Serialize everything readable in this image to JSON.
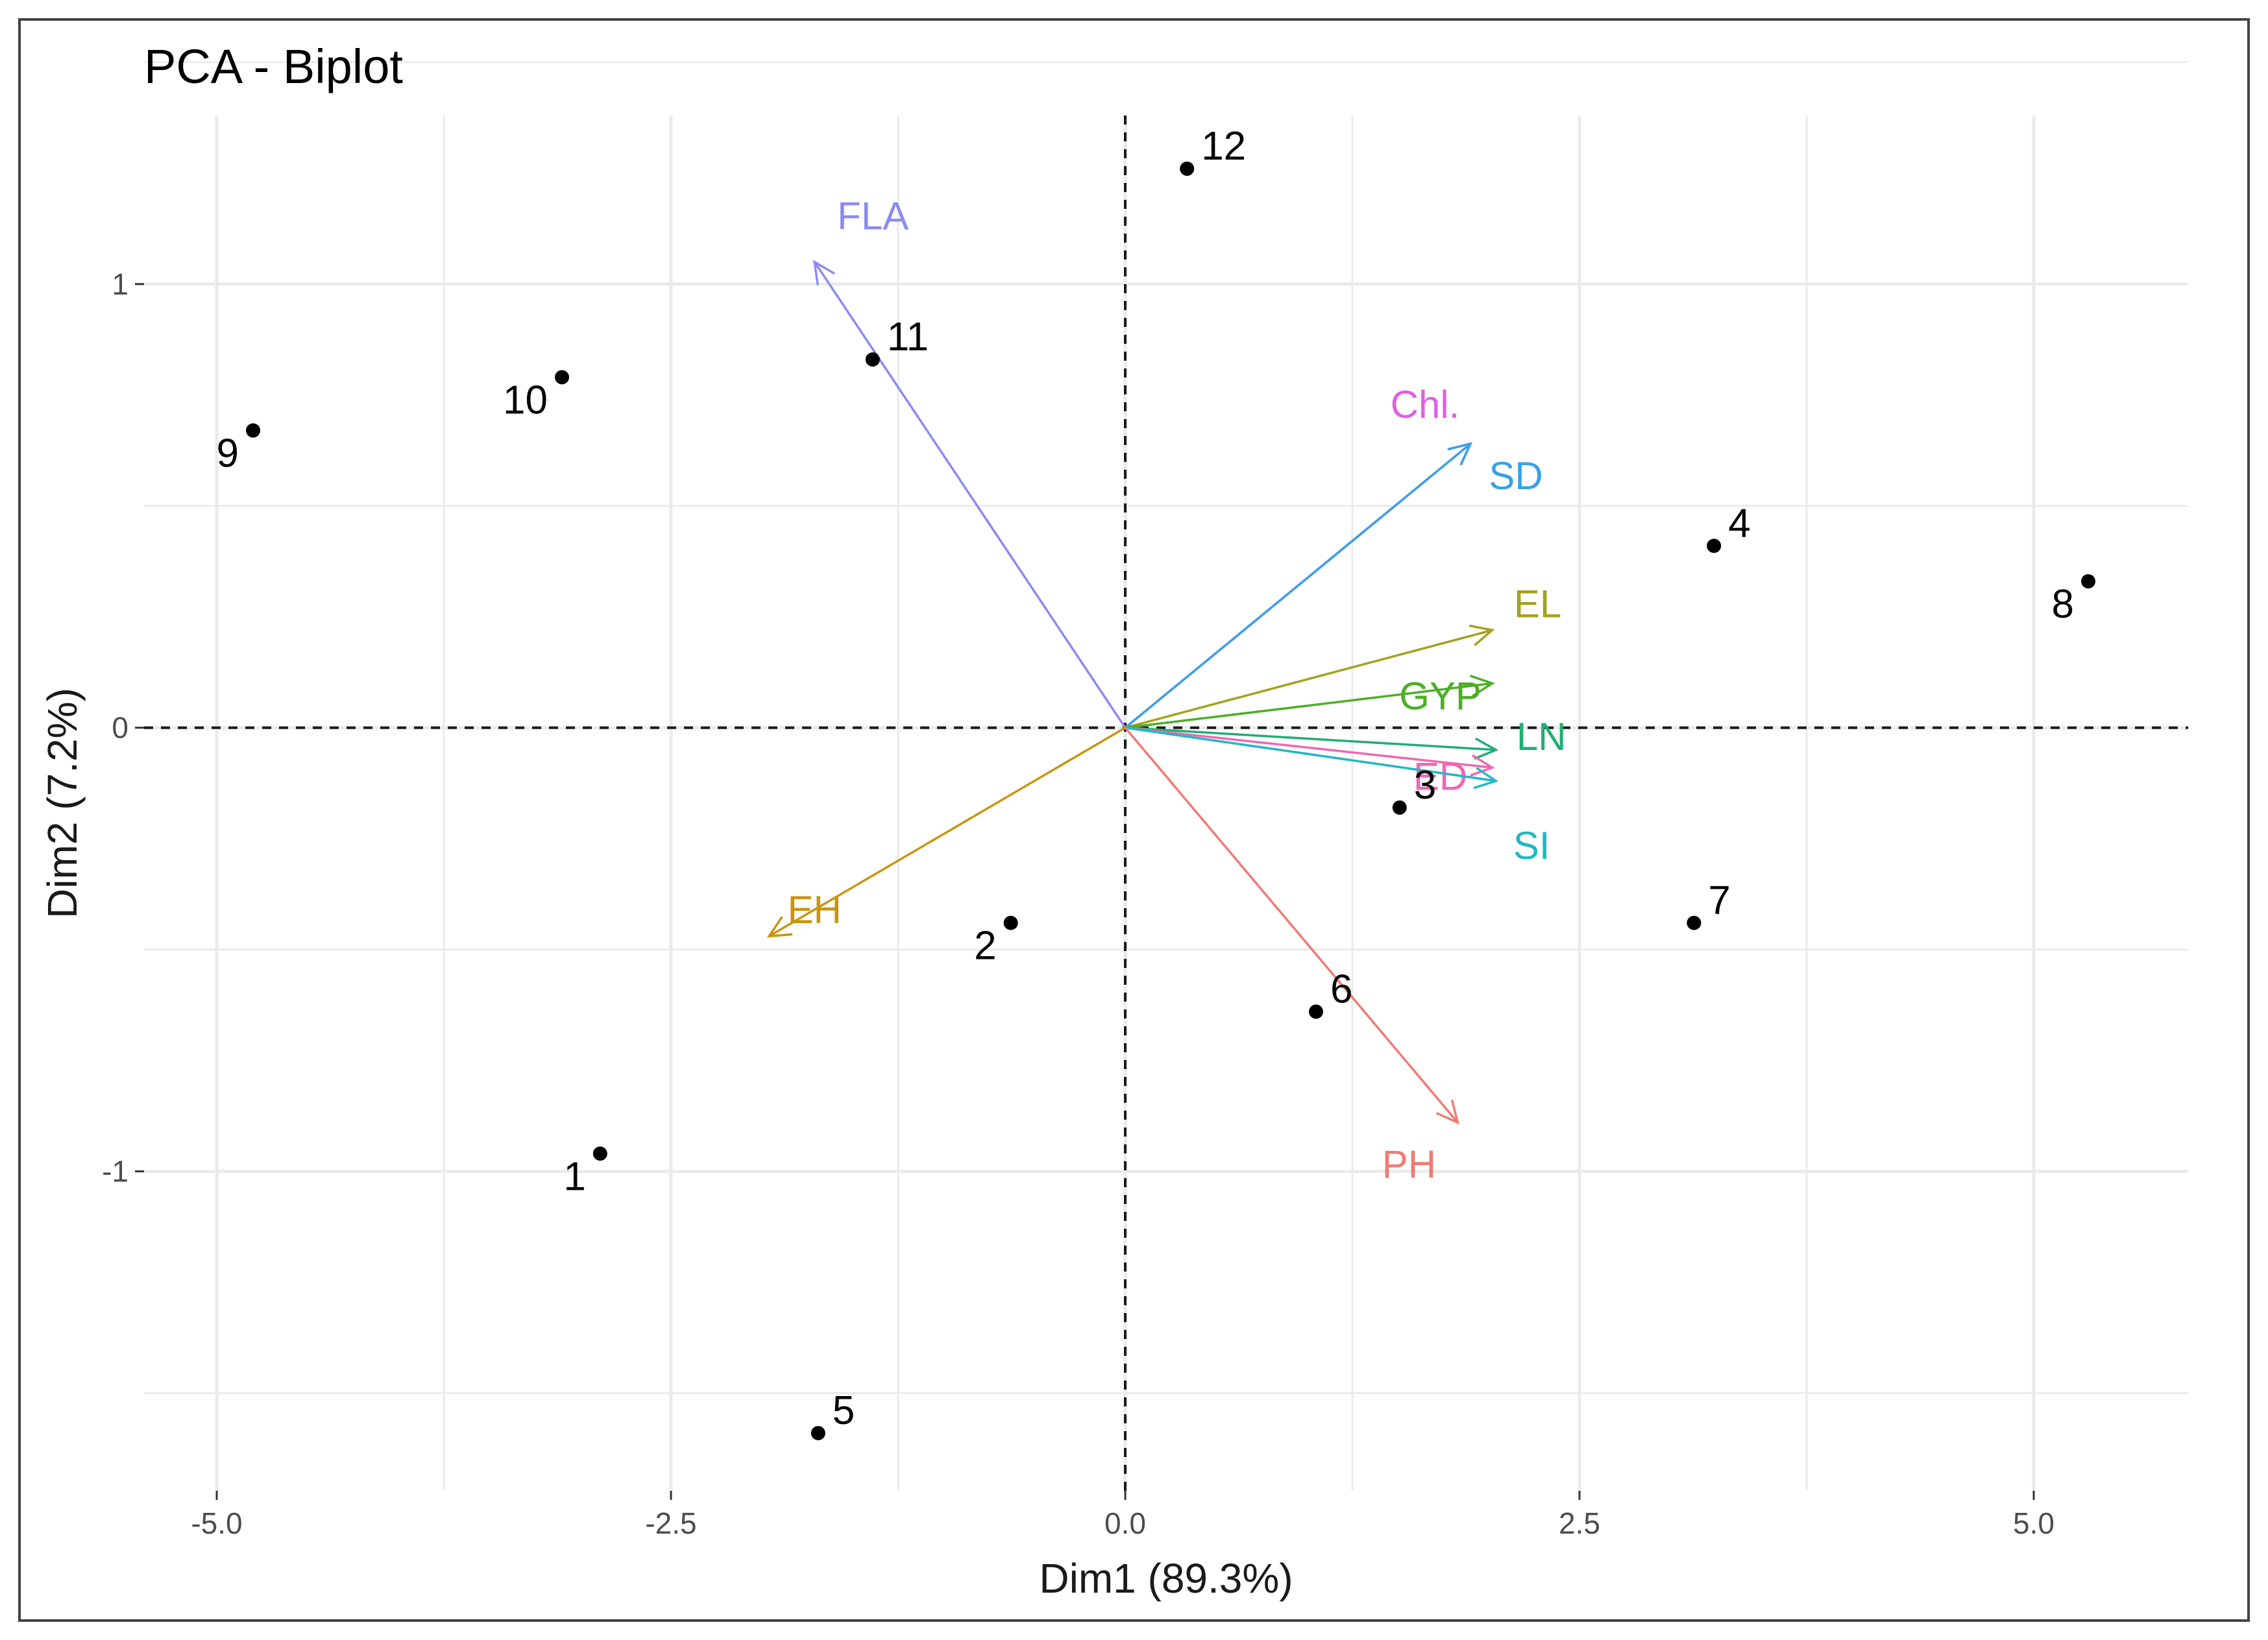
{
  "chart_data": {
    "type": "scatter",
    "subtype": "pca-biplot",
    "title": "PCA - Biplot",
    "xlabel": "Dim1 (89.3%)",
    "ylabel": "Dim2 (7.2%)",
    "xlim": [
      -5.4,
      5.85
    ],
    "ylim": [
      -1.72,
      1.38
    ],
    "x_ticks": [
      {
        "value": -5.0,
        "label": "-5.0"
      },
      {
        "value": -2.5,
        "label": "-2.5"
      },
      {
        "value": 0.0,
        "label": "0.0"
      },
      {
        "value": 2.5,
        "label": "2.5"
      },
      {
        "value": 5.0,
        "label": "5.0"
      }
    ],
    "y_ticks": [
      {
        "value": 1,
        "label": "1"
      },
      {
        "value": 0,
        "label": "0"
      },
      {
        "value": -1,
        "label": "-1"
      }
    ],
    "grid": true,
    "points": [
      {
        "label": "1",
        "x": -2.89,
        "y": -0.96,
        "label_pos": "below-left"
      },
      {
        "label": "2",
        "x": -0.63,
        "y": -0.44,
        "label_pos": "below-left"
      },
      {
        "label": "3",
        "x": 1.51,
        "y": -0.18,
        "label_pos": "above-right"
      },
      {
        "label": "4",
        "x": 3.24,
        "y": 0.41,
        "label_pos": "above-right"
      },
      {
        "label": "5",
        "x": -1.69,
        "y": -1.59,
        "label_pos": "above-right"
      },
      {
        "label": "6",
        "x": 1.05,
        "y": -0.64,
        "label_pos": "above-right"
      },
      {
        "label": "7",
        "x": 3.13,
        "y": -0.44,
        "label_pos": "above-right"
      },
      {
        "label": "8",
        "x": 5.3,
        "y": 0.33,
        "label_pos": "below-left"
      },
      {
        "label": "9",
        "x": -4.8,
        "y": 0.67,
        "label_pos": "below-left"
      },
      {
        "label": "10",
        "x": -3.1,
        "y": 0.79,
        "label_pos": "below-left"
      },
      {
        "label": "11",
        "x": -1.39,
        "y": 0.83,
        "label_pos": "above-right"
      },
      {
        "label": "12",
        "x": 0.34,
        "y": 1.26,
        "label_pos": "above-right"
      }
    ],
    "variables": [
      {
        "name": "FLA",
        "x": -1.71,
        "y": 1.05,
        "color": "#8B8BF0"
      },
      {
        "name": "Chl.",
        "x": 1.9,
        "y": 0.64,
        "color": "#E15FE6"
      },
      {
        "name": "SD",
        "x": 1.9,
        "y": 0.64,
        "color": "#3AA0E8"
      },
      {
        "name": "EL",
        "x": 2.02,
        "y": 0.22,
        "color": "#A3A21F"
      },
      {
        "name": "GYP",
        "x": 2.02,
        "y": 0.1,
        "color": "#4CAF25"
      },
      {
        "name": "LN",
        "x": 2.04,
        "y": -0.05,
        "color": "#1FAE74"
      },
      {
        "name": "ED",
        "x": 2.02,
        "y": -0.09,
        "color": "#F067B4"
      },
      {
        "name": "SI",
        "x": 2.04,
        "y": -0.12,
        "color": "#22B8C4"
      },
      {
        "name": "PH",
        "x": 1.83,
        "y": -0.89,
        "color": "#F07B74"
      },
      {
        "name": "EH",
        "x": -1.96,
        "y": -0.47,
        "color": "#C9950F"
      }
    ]
  }
}
